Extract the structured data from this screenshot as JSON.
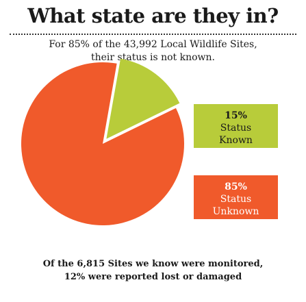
{
  "title": "What state are they in?",
  "subtitle": {
    "line1": "For 85% of the 43,992 Local Wildlife Sites,",
    "line2": "their status is not known."
  },
  "chart_data": {
    "type": "pie",
    "slices": [
      {
        "label": "Status Known",
        "pct_label": "15%",
        "line1": "Status",
        "line2": "Known",
        "value": 15,
        "color": "#b8cc3a"
      },
      {
        "label": "Status Unknown",
        "pct_label": "85%",
        "line1": "Status",
        "line2": "Unknown",
        "value": 85,
        "color": "#f05a2b"
      }
    ],
    "title": "",
    "legend": "right"
  },
  "footer": {
    "line1": "Of the 6,815 Sites we know were monitored,",
    "line2": "12% were reported lost or damaged"
  }
}
